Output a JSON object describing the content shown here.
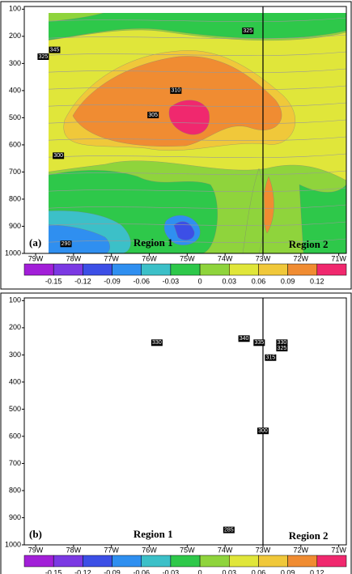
{
  "chart_data": [
    {
      "type": "contour",
      "panel_label": "(a)",
      "regions": [
        "Region 1",
        "Region 2"
      ],
      "ylim": [
        1000,
        90
      ],
      "yticks": [
        100,
        200,
        300,
        400,
        500,
        600,
        700,
        800,
        900,
        1000
      ],
      "xlim": [
        -79.3,
        -70.8
      ],
      "xticks": [
        {
          "value": -79,
          "label": "79W"
        },
        {
          "value": -78,
          "label": "78W"
        },
        {
          "value": -77,
          "label": "77W"
        },
        {
          "value": -76,
          "label": "76W"
        },
        {
          "value": -75,
          "label": "75W"
        },
        {
          "value": -74,
          "label": "74W"
        },
        {
          "value": -73,
          "label": "73W"
        },
        {
          "value": -72,
          "label": "72W"
        },
        {
          "value": -71,
          "label": "71W"
        }
      ],
      "divider": -73,
      "contour_labels": [
        {
          "x": -73.4,
          "y": 180,
          "value": 325
        },
        {
          "x": -78.5,
          "y": 250,
          "value": 345
        },
        {
          "x": -78.8,
          "y": 275,
          "value": 325
        },
        {
          "x": -75.3,
          "y": 400,
          "value": 310
        },
        {
          "x": -75.9,
          "y": 490,
          "value": 305
        },
        {
          "x": -78.4,
          "y": 640,
          "value": 300
        },
        {
          "x": -78.2,
          "y": 965,
          "value": 290
        }
      ],
      "colorbar": {
        "ticks": [
          -0.15,
          -0.12,
          -0.09,
          -0.06,
          -0.03,
          0,
          0.03,
          0.06,
          0.09,
          0.12
        ],
        "colors": [
          "#a21fd8",
          "#7b39e3",
          "#3c4fe6",
          "#2f8ff0",
          "#3cc0c8",
          "#2ec84a",
          "#8fd43c",
          "#e0e63a",
          "#f0c83a",
          "#f08c32",
          "#f0286e"
        ]
      }
    },
    {
      "type": "contour",
      "panel_label": "(b)",
      "regions": [
        "Region 1",
        "Region 2"
      ],
      "ylim": [
        1000,
        90
      ],
      "yticks": [
        100,
        200,
        300,
        400,
        500,
        600,
        700,
        800,
        900,
        1000
      ],
      "xlim": [
        -79.3,
        -70.8
      ],
      "xticks": [
        {
          "value": -79,
          "label": "79W"
        },
        {
          "value": -78,
          "label": "78W"
        },
        {
          "value": -77,
          "label": "77W"
        },
        {
          "value": -76,
          "label": "76W"
        },
        {
          "value": -75,
          "label": "75W"
        },
        {
          "value": -74,
          "label": "74W"
        },
        {
          "value": -73,
          "label": "73W"
        },
        {
          "value": -72,
          "label": "72W"
        },
        {
          "value": -71,
          "label": "71W"
        }
      ],
      "divider": -73,
      "contour_labels": [
        {
          "x": -75.8,
          "y": 255,
          "value": 330
        },
        {
          "x": -73.5,
          "y": 240,
          "value": 340
        },
        {
          "x": -73.1,
          "y": 255,
          "value": 335
        },
        {
          "x": -72.5,
          "y": 255,
          "value": 330
        },
        {
          "x": -72.5,
          "y": 275,
          "value": 325
        },
        {
          "x": -72.8,
          "y": 310,
          "value": 315
        },
        {
          "x": -73,
          "y": 580,
          "value": 300
        },
        {
          "x": -73.9,
          "y": 945,
          "value": 285
        }
      ],
      "colorbar": {
        "ticks": [
          -0.15,
          -0.12,
          -0.09,
          -0.06,
          -0.03,
          0,
          0.03,
          0.06,
          0.09,
          0.12
        ],
        "colors": [
          "#a21fd8",
          "#7b39e3",
          "#3c4fe6",
          "#2f8ff0",
          "#3cc0c8",
          "#2ec84a",
          "#8fd43c",
          "#e0e63a",
          "#f0c83a",
          "#f08c32",
          "#f0286e"
        ]
      }
    }
  ]
}
